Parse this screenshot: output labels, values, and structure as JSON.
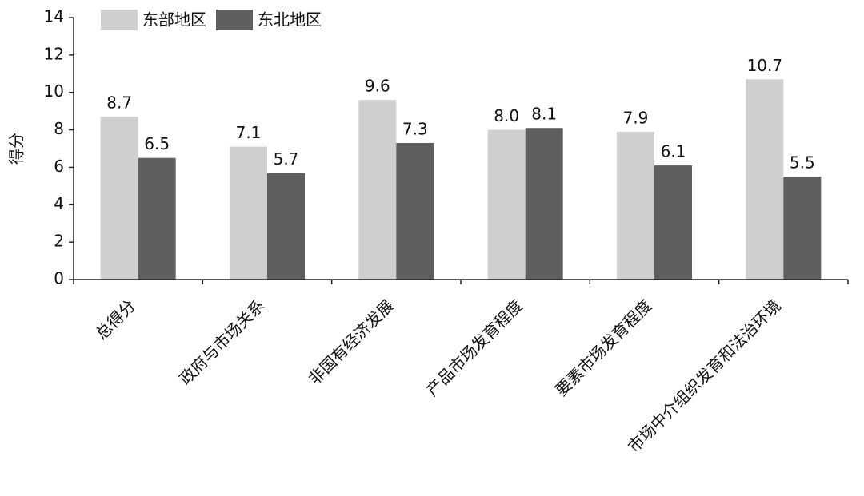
{
  "chart_data": {
    "type": "bar",
    "y_label": "得分",
    "categories": [
      "总得分",
      "政府与市场关系",
      "非国有经济发展",
      "产品市场发育程度",
      "要素市场发育程度",
      "市场中介组织发育和法治环境"
    ],
    "series": [
      {
        "name": "东部地区",
        "color": "#cfcfcf",
        "values": [
          8.7,
          7.1,
          9.6,
          8.0,
          7.9,
          10.7
        ],
        "value_labels": [
          "8.7",
          "7.1",
          "9.6",
          "8.0",
          "7.9",
          "10.7"
        ]
      },
      {
        "name": "东北地区",
        "color": "#5f5f5f",
        "values": [
          6.5,
          5.7,
          7.3,
          8.1,
          6.1,
          5.5
        ],
        "value_labels": [
          "6.5",
          "5.7",
          "7.3",
          "8.1",
          "6.1",
          "5.5"
        ]
      }
    ],
    "ylim": [
      0,
      14
    ],
    "yticks": [
      0,
      2,
      4,
      6,
      8,
      10,
      12,
      14
    ],
    "legend": "top-left"
  }
}
